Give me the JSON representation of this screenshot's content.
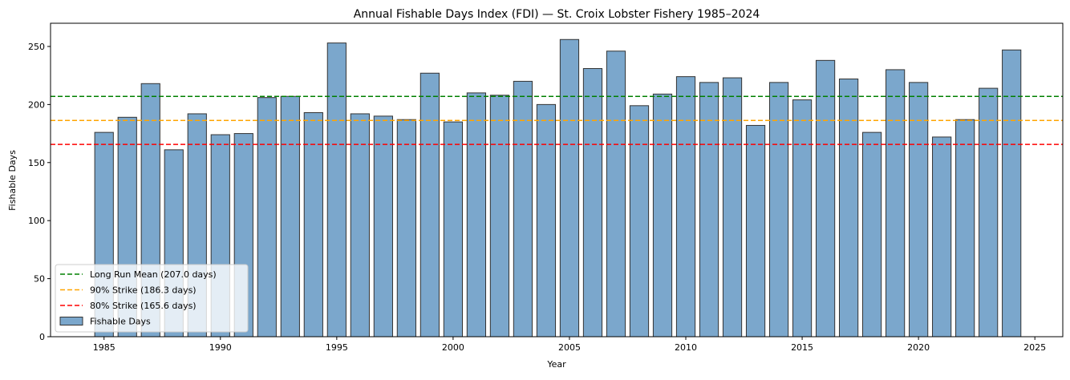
{
  "chart_data": {
    "type": "bar",
    "title": "Annual Fishable Days Index (FDI) — St. Croix Lobster Fishery 1985–2024",
    "xlabel": "Year",
    "ylabel": "Fishable Days",
    "xlim": [
      1982.7,
      2026.2
    ],
    "ylim": [
      0,
      270
    ],
    "xticks": [
      1985,
      1990,
      1995,
      2000,
      2005,
      2010,
      2015,
      2020,
      2025
    ],
    "yticks": [
      0,
      50,
      100,
      150,
      200,
      250
    ],
    "grid": false,
    "legend_placement": "lower-left",
    "bar_color": "#7ba7cc",
    "bar_edge_color": "#333333",
    "x": [
      1985,
      1986,
      1987,
      1988,
      1989,
      1990,
      1991,
      1992,
      1993,
      1994,
      1995,
      1996,
      1997,
      1998,
      1999,
      2000,
      2001,
      2002,
      2003,
      2004,
      2005,
      2006,
      2007,
      2008,
      2009,
      2010,
      2011,
      2012,
      2013,
      2014,
      2015,
      2016,
      2017,
      2018,
      2019,
      2020,
      2021,
      2022,
      2023,
      2024
    ],
    "series": [
      {
        "name": "Fishable Days",
        "values": [
          176,
          189,
          218,
          161,
          192,
          174,
          175,
          206,
          207,
          193,
          253,
          192,
          190,
          187,
          227,
          185,
          210,
          208,
          220,
          200,
          256,
          231,
          246,
          199,
          209,
          224,
          219,
          223,
          182,
          219,
          204,
          238,
          222,
          176,
          230,
          219,
          172,
          187,
          214,
          247
        ]
      }
    ],
    "hlines": [
      {
        "label": "Long Run Mean (207.0 days)",
        "value": 207.0,
        "color": "#008000"
      },
      {
        "label": "90% Strike (186.3 days)",
        "value": 186.3,
        "color": "#ffa500"
      },
      {
        "label": "80% Strike (165.6 days)",
        "value": 165.6,
        "color": "#ff0000"
      }
    ]
  }
}
